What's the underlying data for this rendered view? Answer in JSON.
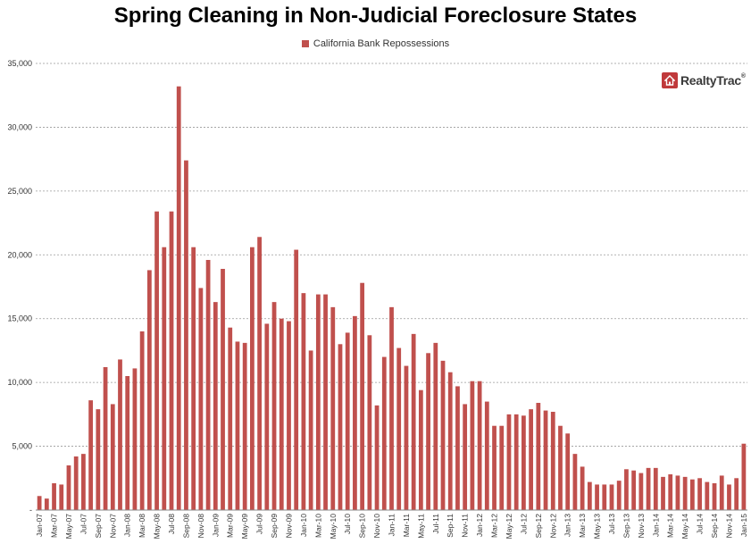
{
  "logo": {
    "brand": "RealtyTrac",
    "reg": "®",
    "icon": "house-icon"
  },
  "chart_data": {
    "type": "bar",
    "title": "Spring Cleaning in Non-Judicial Foreclosure States",
    "legend_position": "top",
    "grid": true,
    "ylim": [
      0,
      35000
    ],
    "yticks": [
      "-",
      "5,000",
      "10,000",
      "15,000",
      "20,000",
      "25,000",
      "30,000",
      "35,000"
    ],
    "bar_color": "#c0504d",
    "categories": [
      "Jan-07",
      "Feb-07",
      "Mar-07",
      "Apr-07",
      "May-07",
      "Jun-07",
      "Jul-07",
      "Aug-07",
      "Sep-07",
      "Oct-07",
      "Nov-07",
      "Dec-07",
      "Jan-08",
      "Feb-08",
      "Mar-08",
      "Apr-08",
      "May-08",
      "Jun-08",
      "Jul-08",
      "Aug-08",
      "Sep-08",
      "Oct-08",
      "Nov-08",
      "Dec-08",
      "Jan-09",
      "Feb-09",
      "Mar-09",
      "Apr-09",
      "May-09",
      "Jun-09",
      "Jul-09",
      "Aug-09",
      "Sep-09",
      "Oct-09",
      "Nov-09",
      "Dec-09",
      "Jan-10",
      "Feb-10",
      "Mar-10",
      "Apr-10",
      "May-10",
      "Jun-10",
      "Jul-10",
      "Aug-10",
      "Sep-10",
      "Oct-10",
      "Nov-10",
      "Dec-10",
      "Jan-11",
      "Feb-11",
      "Mar-11",
      "Apr-11",
      "May-11",
      "Jun-11",
      "Jul-11",
      "Aug-11",
      "Sep-11",
      "Oct-11",
      "Nov-11",
      "Dec-11",
      "Jan-12",
      "Feb-12",
      "Mar-12",
      "Apr-12",
      "May-12",
      "Jun-12",
      "Jul-12",
      "Aug-12",
      "Sep-12",
      "Oct-12",
      "Nov-12",
      "Dec-12",
      "Jan-13",
      "Feb-13",
      "Mar-13",
      "Apr-13",
      "May-13",
      "Jun-13",
      "Jul-13",
      "Aug-13",
      "Sep-13",
      "Oct-13",
      "Nov-13",
      "Dec-13",
      "Jan-14",
      "Feb-14",
      "Mar-14",
      "Apr-14",
      "May-14",
      "Jun-14",
      "Jul-14",
      "Aug-14",
      "Sep-14",
      "Oct-14",
      "Nov-14",
      "Dec-14",
      "Jan-15"
    ],
    "series": [
      {
        "name": "California Bank Repossessions",
        "values": [
          1100,
          900,
          2100,
          2000,
          3500,
          4200,
          4400,
          8600,
          7900,
          11200,
          8300,
          11800,
          10500,
          11100,
          14000,
          18800,
          23400,
          20600,
          23400,
          33200,
          27400,
          20600,
          17400,
          19600,
          16300,
          18900,
          14300,
          13200,
          13100,
          20600,
          21400,
          14600,
          16300,
          15000,
          14800,
          20400,
          17000,
          12500,
          16900,
          16900,
          15900,
          13000,
          13900,
          15200,
          17800,
          13700,
          8200,
          12000,
          15900,
          12700,
          11300,
          13800,
          9400,
          12300,
          13100,
          11700,
          10800,
          9700,
          8300,
          10100,
          10100,
          8500,
          6600,
          6600,
          7500,
          7500,
          7400,
          7900,
          8400,
          7800,
          7700,
          6600,
          6000,
          4400,
          3400,
          2200,
          2000,
          2000,
          2000,
          2300,
          3200,
          3100,
          2900,
          3300,
          3300,
          2600,
          2800,
          2700,
          2600,
          2400,
          2500,
          2200,
          2100,
          2700,
          2000,
          2500,
          5200
        ]
      }
    ],
    "xtick_labels": [
      "Jan-07",
      "Mar-07",
      "May-07",
      "Jul-07",
      "Sep-07",
      "Nov-07",
      "Jan-08",
      "Mar-08",
      "May-08",
      "Jul-08",
      "Sep-08",
      "Nov-08",
      "Jan-09",
      "Mar-09",
      "May-09",
      "Jul-09",
      "Sep-09",
      "Nov-09",
      "Jan-10",
      "Mar-10",
      "May-10",
      "Jul-10",
      "Sep-10",
      "Nov-10",
      "Jan-11",
      "Mar-11",
      "May-11",
      "Jul-11",
      "Sep-11",
      "Nov-11",
      "Jan-12",
      "Mar-12",
      "May-12",
      "Jul-12",
      "Sep-12",
      "Nov-12",
      "Jan-13",
      "Mar-13",
      "May-13",
      "Jul-13",
      "Sep-13",
      "Nov-13",
      "Jan-14",
      "Mar-14",
      "May-14",
      "Jul-14",
      "Sep-14",
      "Nov-14",
      "Jan-15"
    ]
  }
}
